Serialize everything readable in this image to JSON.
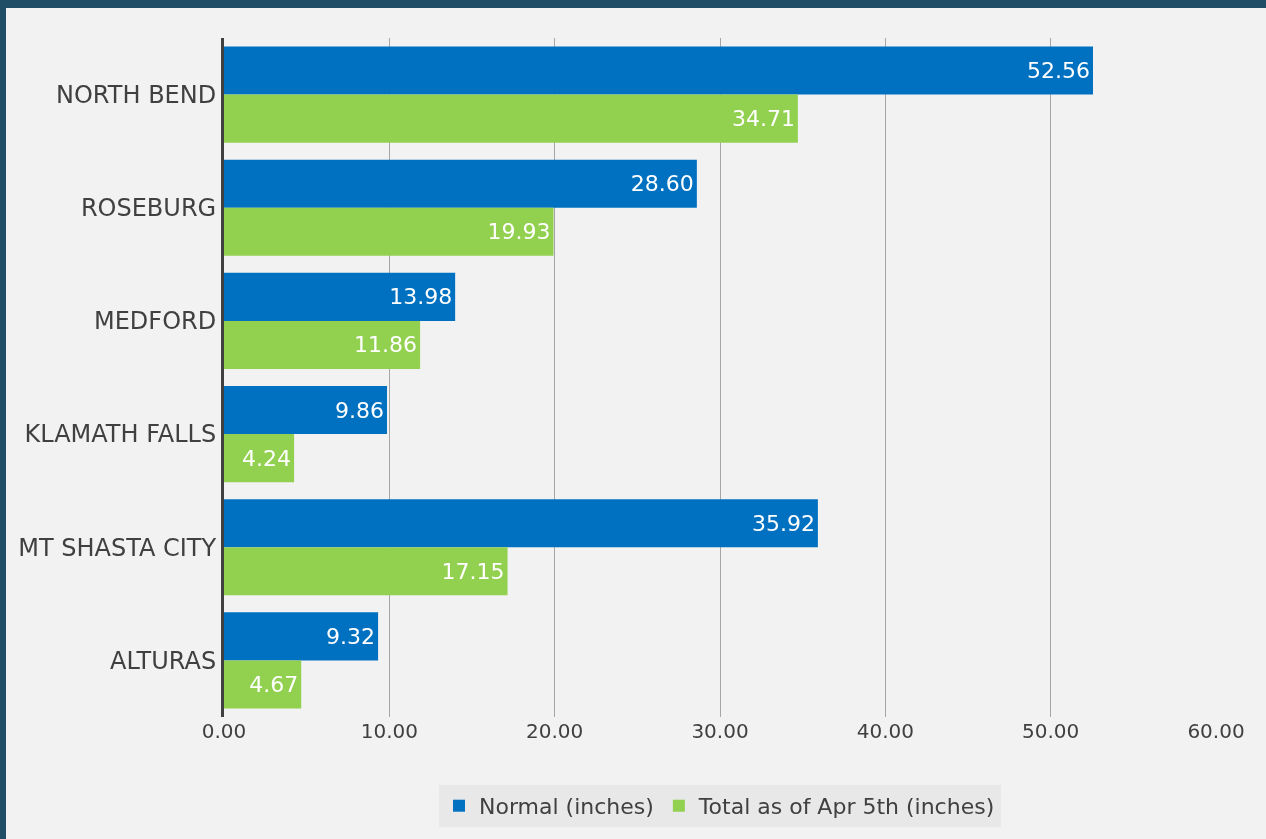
{
  "chart_data": {
    "type": "bar",
    "orientation": "horizontal",
    "categories": [
      "NORTH BEND",
      "ROSEBURG",
      "MEDFORD",
      "KLAMATH FALLS",
      "MT SHASTA CITY",
      "ALTURAS"
    ],
    "series": [
      {
        "name": "Normal (inches)",
        "color": "#0070c0",
        "values": [
          52.56,
          28.6,
          13.98,
          9.86,
          35.92,
          9.32
        ],
        "value_labels": [
          "52.56",
          "28.60",
          "13.98",
          "9.86",
          "35.92",
          "9.32"
        ]
      },
      {
        "name": "Total as of Apr 5th (inches)",
        "color": "#92d050",
        "values": [
          34.71,
          19.93,
          11.86,
          4.24,
          17.15,
          4.67
        ],
        "value_labels": [
          "34.71",
          "19.93",
          "11.86",
          "4.24",
          "17.15",
          "4.67"
        ]
      }
    ],
    "xlim": [
      0,
      60
    ],
    "xticks": [
      {
        "value": 0,
        "label": "0.00"
      },
      {
        "value": 10,
        "label": "10.00"
      },
      {
        "value": 20,
        "label": "20.00"
      },
      {
        "value": 30,
        "label": "30.00"
      },
      {
        "value": 40,
        "label": "40.00"
      },
      {
        "value": 50,
        "label": "50.00"
      },
      {
        "value": 60,
        "label": "60.00"
      }
    ],
    "grid": "x",
    "legend": "bottom"
  }
}
